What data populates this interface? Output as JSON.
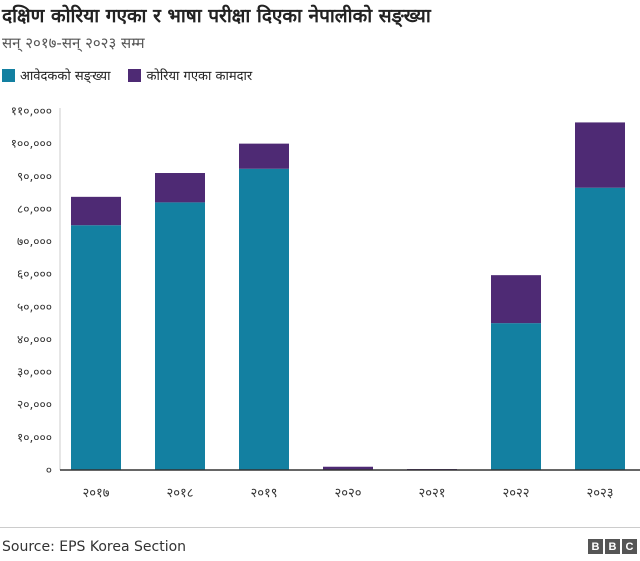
{
  "chart_data": {
    "type": "bar",
    "stacked": true,
    "title": "दक्षिण कोरिया गएका र भाषा परीक्षा दिएका नेपालीको सङ्ख्या",
    "subtitle": "सन् २०१७-सन् २०२३ सम्म",
    "categories": [
      "२०१७",
      "२०१८",
      "२०१९",
      "२०२०",
      "२०२१",
      "२०२२",
      "२०२३"
    ],
    "series": [
      {
        "name": "आवेदकको सङ्ख्या",
        "color": "#1380A1",
        "values": [
          75000,
          82000,
          92300,
          0,
          0,
          45000,
          86500
        ]
      },
      {
        "name": "कोरिया गएका कामदार",
        "color": "#4E2A74",
        "values": [
          8700,
          9000,
          7700,
          1000,
          300,
          14700,
          20000
        ]
      }
    ],
    "ylim": [
      0,
      110000
    ],
    "yticks": [
      0,
      10000,
      20000,
      30000,
      40000,
      50000,
      60000,
      70000,
      80000,
      90000,
      100000,
      110000
    ],
    "ytick_labels": [
      "०",
      "१०,०००",
      "२०,०००",
      "३०,०००",
      "४०,०००",
      "५०,०००",
      "६०,०००",
      "७०,०००",
      "८०,०००",
      "९०,०००",
      "१००,०००",
      "११०,०००"
    ],
    "legend": "top-left",
    "grid": false
  },
  "footer": {
    "source": "Source:  EPS  Korea  Section",
    "logo": [
      "B",
      "B",
      "C"
    ]
  }
}
